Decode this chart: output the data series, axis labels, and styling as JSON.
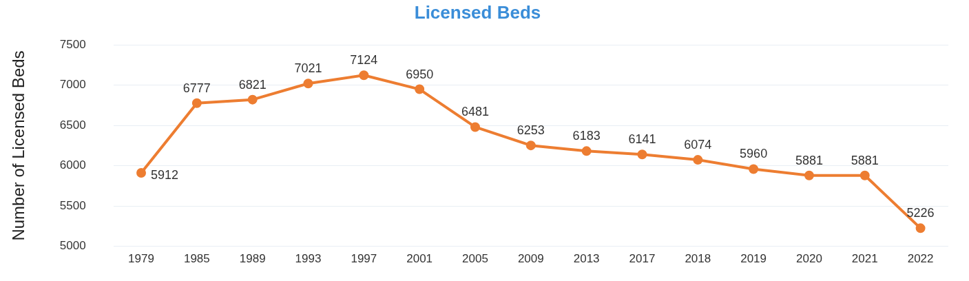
{
  "chart_data": {
    "type": "line",
    "title": "Licensed Beds",
    "ylabel": "Number of Licensed Beds",
    "categories": [
      "1979",
      "1985",
      "1989",
      "1993",
      "1997",
      "2001",
      "2005",
      "2009",
      "2013",
      "2017",
      "2018",
      "2019",
      "2020",
      "2021",
      "2022"
    ],
    "series": [
      {
        "color": "#ed7d31",
        "values": [
          5912,
          6777,
          6821,
          7021,
          7124,
          6950,
          6481,
          6253,
          6183,
          6141,
          6074,
          5960,
          5881,
          5881,
          5226
        ]
      }
    ],
    "ylim": [
      5000,
      7500
    ],
    "yticks": [
      5000,
      5500,
      6000,
      6500,
      7000,
      7500
    ],
    "grid": "y",
    "marker": "circle",
    "data_labels": true,
    "legend": false
  }
}
